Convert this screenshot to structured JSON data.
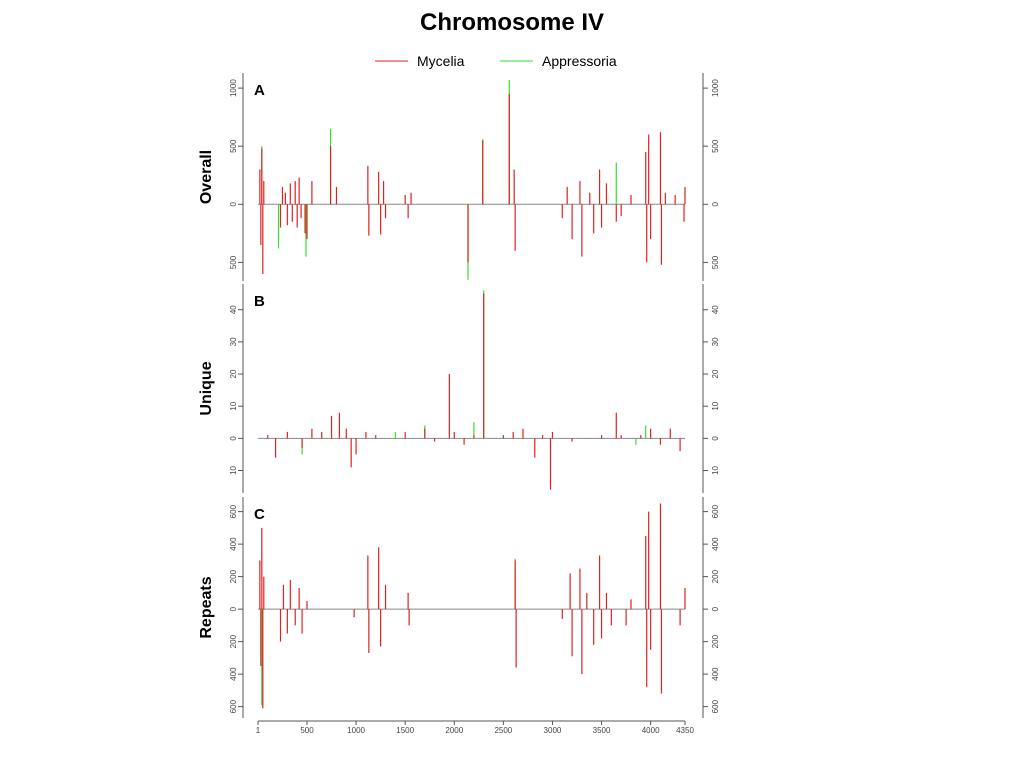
{
  "title": "Chromosome IV",
  "chart_data": [
    {
      "type": "spike",
      "label": "A",
      "ylabel": "Overall",
      "ylim": [
        -660,
        1130
      ],
      "yticks": [
        {
          "value": -500,
          "label": "500"
        },
        0,
        500,
        1000
      ],
      "series": [
        {
          "name": "Appressoria",
          "color": "#33dd33",
          "x": [
            40,
            210,
            490,
            740,
            2140,
            2290,
            2560,
            3650
          ],
          "values": [
            500,
            -380,
            -450,
            650,
            -650,
            560,
            1070,
            360
          ]
        },
        {
          "name": "Mycelia",
          "color": "#dd2222",
          "x": [
            20,
            30,
            40,
            50,
            60,
            230,
            250,
            280,
            300,
            330,
            350,
            380,
            400,
            420,
            440,
            480,
            500,
            550,
            740,
            800,
            1120,
            1130,
            1230,
            1250,
            1280,
            1300,
            1500,
            1530,
            1560,
            2140,
            2290,
            2560,
            2610,
            2620,
            3100,
            3150,
            3200,
            3280,
            3300,
            3380,
            3420,
            3480,
            3500,
            3550,
            3650,
            3700,
            3800,
            3950,
            3960,
            3980,
            4000,
            4100,
            4110,
            4150,
            4250,
            4340,
            4350
          ],
          "values": [
            300,
            -350,
            480,
            -600,
            200,
            -200,
            150,
            100,
            -180,
            180,
            -150,
            200,
            -200,
            230,
            -120,
            -250,
            -300,
            200,
            500,
            150,
            330,
            -270,
            280,
            -260,
            200,
            -120,
            80,
            -120,
            100,
            -500,
            550,
            950,
            300,
            -400,
            -120,
            150,
            -300,
            200,
            -450,
            100,
            -250,
            300,
            -200,
            180,
            -150,
            -100,
            80,
            450,
            -500,
            600,
            -300,
            620,
            -520,
            100,
            80,
            -150,
            150
          ]
        }
      ]
    },
    {
      "type": "spike",
      "label": "B",
      "ylabel": "Unique",
      "ylim": [
        -17,
        48
      ],
      "yticks": [
        {
          "value": -10,
          "label": "10"
        },
        0,
        10,
        20,
        30,
        40
      ],
      "series": [
        {
          "color": "#33dd33",
          "x": [
            450,
            1400,
            1700,
            2200,
            2300,
            3850,
            3950
          ],
          "values": [
            -5,
            2,
            4,
            5,
            46,
            -2,
            4
          ]
        },
        {
          "color": "#dd2222",
          "x": [
            100,
            180,
            300,
            450,
            550,
            650,
            750,
            830,
            900,
            950,
            1000,
            1100,
            1200,
            1500,
            1700,
            1800,
            1950,
            2000,
            2100,
            2200,
            2300,
            2500,
            2600,
            2700,
            2820,
            2900,
            2980,
            3000,
            3200,
            3500,
            3650,
            3700,
            3900,
            4000,
            4100,
            4200,
            4300
          ],
          "values": [
            1,
            -6,
            2,
            -3,
            3,
            2,
            7,
            8,
            3,
            -9,
            -5,
            2,
            1,
            2,
            3,
            -1,
            20,
            2,
            -2,
            1,
            45,
            1,
            2,
            3,
            -6,
            1,
            -16,
            2,
            -1,
            1,
            8,
            1,
            1,
            3,
            -2,
            3,
            -4
          ]
        }
      ]
    },
    {
      "type": "spike",
      "label": "C",
      "ylabel": "Repeats",
      "ylim": [
        -670,
        690
      ],
      "yticks": [
        {
          "value": -600,
          "label": "600"
        },
        {
          "value": -400,
          "label": "400"
        },
        {
          "value": -200,
          "label": "200"
        },
        0,
        200,
        400,
        600
      ],
      "xlim": [
        1,
        4350
      ],
      "xticks": [
        1,
        500,
        1000,
        1500,
        2000,
        2500,
        3000,
        3500,
        4000,
        4350
      ],
      "series": [
        {
          "color": "#33dd33",
          "x": [
            40,
            2620
          ],
          "values": [
            -590,
            310
          ]
        },
        {
          "color": "#dd2222",
          "x": [
            20,
            30,
            40,
            50,
            60,
            230,
            260,
            300,
            330,
            380,
            420,
            450,
            500,
            980,
            1120,
            1130,
            1230,
            1250,
            1300,
            1530,
            1540,
            2620,
            2630,
            3100,
            3180,
            3200,
            3280,
            3300,
            3350,
            3420,
            3480,
            3500,
            3550,
            3600,
            3750,
            3800,
            3950,
            3960,
            3980,
            4000,
            4100,
            4110,
            4300,
            4350
          ],
          "values": [
            300,
            -350,
            500,
            -610,
            200,
            -200,
            150,
            -150,
            180,
            -100,
            130,
            -150,
            50,
            -50,
            330,
            -270,
            380,
            -230,
            150,
            100,
            -100,
            300,
            -360,
            -60,
            220,
            -290,
            250,
            -400,
            100,
            -220,
            330,
            -180,
            100,
            -100,
            -100,
            60,
            450,
            -480,
            600,
            -250,
            650,
            -520,
            -100,
            130
          ]
        }
      ]
    }
  ]
}
